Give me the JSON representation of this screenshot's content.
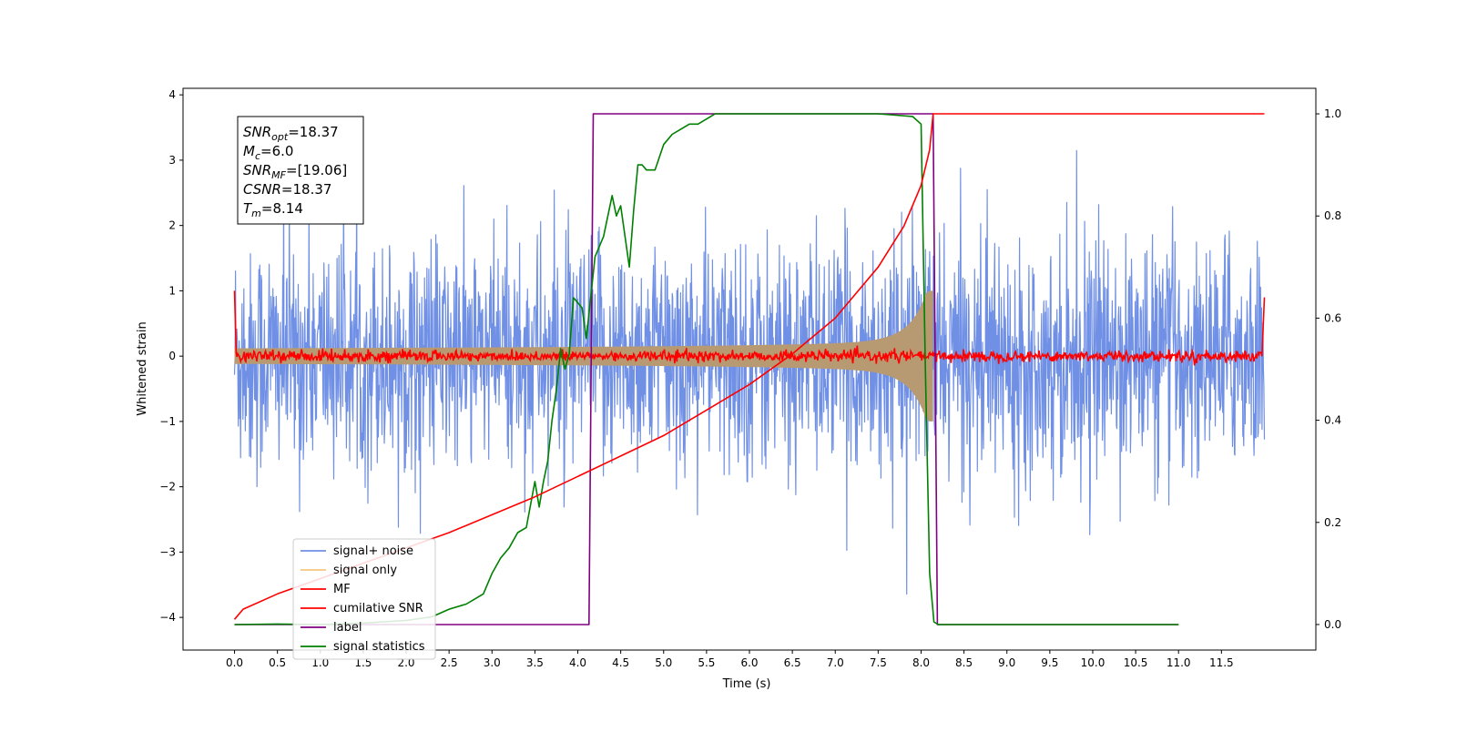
{
  "chart_data": {
    "type": "line",
    "xlabel": "Time (s)",
    "ylabel": "Whitened strain",
    "ylabel_right": "",
    "xlim": [
      -0.6,
      12.6
    ],
    "ylim_left": [
      -4.5,
      4.1
    ],
    "ylim_right": [
      -0.05,
      1.05
    ],
    "x_ticks": [
      "0.0",
      "0.5",
      "1.0",
      "1.5",
      "2.0",
      "2.5",
      "3.0",
      "3.5",
      "4.0",
      "4.5",
      "5.0",
      "5.5",
      "6.0",
      "6.5",
      "7.0",
      "7.5",
      "8.0",
      "8.5",
      "9.0",
      "9.5",
      "10.0",
      "10.5",
      "11.0",
      "11.5"
    ],
    "y_ticks_left": [
      "4",
      "3",
      "2",
      "1",
      "0",
      "−1",
      "−2",
      "−3",
      "−4"
    ],
    "y_ticks_right": [
      "1.0",
      "0.8",
      "0.6",
      "0.4",
      "0.2",
      "0.0"
    ],
    "grid": false,
    "legend_position": "lower-left",
    "annotation": {
      "lines": [
        {
          "base": "SNR",
          "sub": "opt",
          "value": "=18.37"
        },
        {
          "base": "M",
          "sub": "c",
          "value": "=6.0"
        },
        {
          "base": "SNR",
          "sub": "MF",
          "value": "=[19.06]"
        },
        {
          "base": "CSNR",
          "sub": "",
          "value": "=18.37"
        },
        {
          "base": "T",
          "sub": "m",
          "value": "=8.14"
        }
      ]
    },
    "series": [
      {
        "name": "signal+ noise",
        "color": "#7090e6",
        "axis": "left",
        "kind": "noise",
        "typical_range": [
          -1.5,
          1.5
        ],
        "peak_range": [
          -4.1,
          3.7
        ],
        "x_range": [
          0,
          12.0
        ]
      },
      {
        "name": "signal only",
        "color": "#f5c880",
        "axis": "left",
        "kind": "chirp",
        "x_range": [
          0,
          8.14
        ],
        "amplitude_start": 0.12,
        "amplitude_end": 1.0
      },
      {
        "name": "MF",
        "color": "#ff0000",
        "axis": "left",
        "kind": "flat_noise",
        "x_range": [
          0,
          12.0
        ],
        "level": 0.0,
        "spread": 0.07,
        "end_spikes": [
          1.0,
          0.9
        ]
      },
      {
        "name": "cumilative SNR",
        "color": "#ff0000",
        "axis": "right",
        "kind": "line",
        "x": [
          0.0,
          0.1,
          0.5,
          1.0,
          1.5,
          2.0,
          2.5,
          3.0,
          3.5,
          4.0,
          4.5,
          5.0,
          5.5,
          6.0,
          6.5,
          7.0,
          7.5,
          7.8,
          8.0,
          8.1,
          8.14,
          8.5,
          12.0
        ],
        "y": [
          0.01,
          0.03,
          0.06,
          0.09,
          0.12,
          0.15,
          0.18,
          0.215,
          0.25,
          0.29,
          0.33,
          0.37,
          0.42,
          0.47,
          0.53,
          0.6,
          0.7,
          0.78,
          0.86,
          0.93,
          1.0,
          1.0,
          1.0
        ]
      },
      {
        "name": "label",
        "color": "#800080",
        "axis": "right",
        "kind": "line",
        "x": [
          0.0,
          4.13,
          4.18,
          8.14,
          8.19,
          11.0
        ],
        "y": [
          0.0,
          0.0,
          1.0,
          1.0,
          0.0,
          0.0
        ]
      },
      {
        "name": "signal statistics",
        "color": "#008000",
        "axis": "right",
        "kind": "line",
        "x": [
          0.0,
          0.5,
          1.0,
          1.5,
          2.0,
          2.3,
          2.5,
          2.7,
          2.8,
          2.9,
          3.0,
          3.1,
          3.2,
          3.3,
          3.4,
          3.5,
          3.55,
          3.6,
          3.65,
          3.7,
          3.75,
          3.8,
          3.85,
          3.9,
          3.95,
          4.05,
          4.1,
          4.2,
          4.3,
          4.4,
          4.45,
          4.5,
          4.6,
          4.65,
          4.7,
          4.75,
          4.8,
          4.9,
          5.0,
          5.1,
          5.2,
          5.3,
          5.4,
          5.5,
          5.6,
          5.8,
          6.0,
          6.5,
          7.0,
          7.5,
          7.9,
          8.0,
          8.05,
          8.1,
          8.15,
          8.2,
          9.0,
          10.0,
          11.0
        ],
        "y": [
          0.0,
          0.001,
          0.0,
          0.003,
          0.008,
          0.015,
          0.03,
          0.04,
          0.05,
          0.06,
          0.1,
          0.13,
          0.15,
          0.18,
          0.19,
          0.28,
          0.23,
          0.28,
          0.32,
          0.4,
          0.46,
          0.54,
          0.5,
          0.53,
          0.64,
          0.62,
          0.56,
          0.72,
          0.76,
          0.84,
          0.8,
          0.82,
          0.7,
          0.81,
          0.9,
          0.9,
          0.89,
          0.89,
          0.94,
          0.96,
          0.97,
          0.98,
          0.98,
          0.99,
          1.0,
          1.0,
          1.0,
          1.0,
          1.0,
          1.0,
          0.995,
          0.98,
          0.5,
          0.1,
          0.005,
          0.0,
          0.0,
          0.0,
          0.0
        ]
      }
    ]
  }
}
